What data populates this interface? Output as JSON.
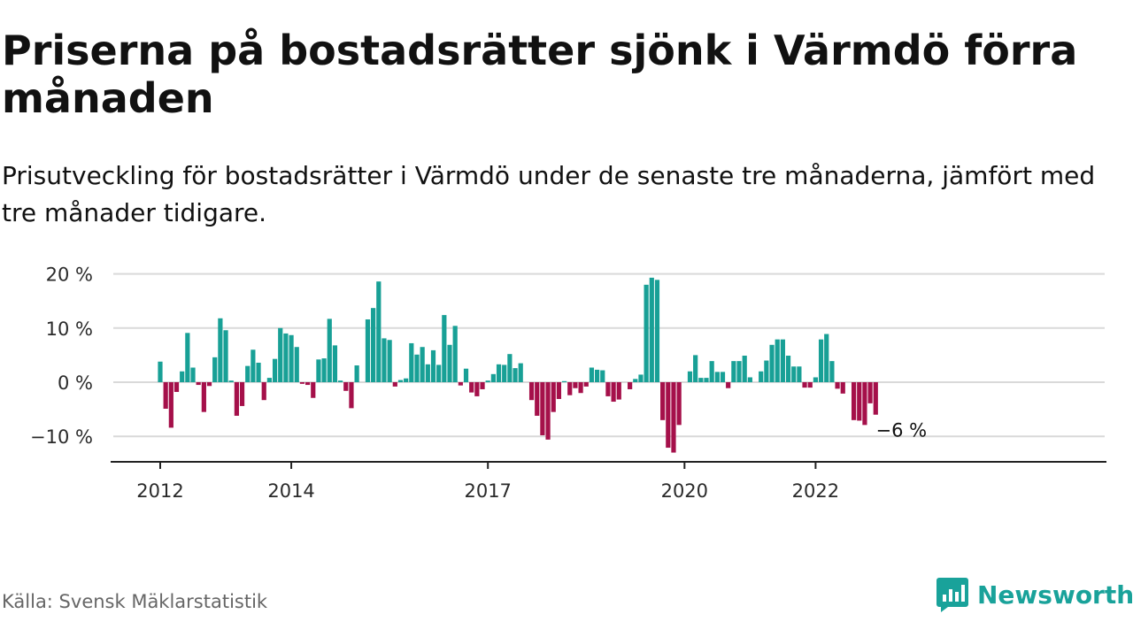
{
  "title": "Priserna på bostadsrätter sjönk i Värmdö förra månaden",
  "subtitle": "Prisutveckling för bostadsrätter i Värmdö under de senaste tre månaderna, jämfört med tre månader tidigare.",
  "source": "Källa: Svensk Mäklarstatistik",
  "logo": {
    "text": "Newsworthy",
    "icon": "newsworthy-logo-icon"
  },
  "colors": {
    "positive": "#18a096",
    "negative": "#a5104a",
    "grid": "#d9d9d9",
    "axis": "#222222",
    "brand": "#19a29a"
  },
  "chart_data": {
    "type": "bar",
    "title": "Priserna på bostadsrätter sjönk i Värmdö förra månaden",
    "xlabel": "",
    "ylabel": "",
    "ylim": [
      -14.5,
      21.5
    ],
    "grid": true,
    "legend": "none",
    "start_month": "2012-01",
    "y_ticks": [
      {
        "value": 20,
        "label": "20 %"
      },
      {
        "value": 10,
        "label": "10 %"
      },
      {
        "value": 0,
        "label": "0 %"
      },
      {
        "value": -10,
        "label": "−10 %"
      }
    ],
    "x_ticks": [
      {
        "month": "2012-01",
        "label": "2012"
      },
      {
        "month": "2014-01",
        "label": "2014"
      },
      {
        "month": "2017-01",
        "label": "2017"
      },
      {
        "month": "2020-01",
        "label": "2020"
      },
      {
        "month": "2022-01",
        "label": "2022"
      }
    ],
    "end_label": "−6 %",
    "values": [
      3.8,
      -4.9,
      -8.4,
      -1.8,
      2.0,
      9.1,
      2.7,
      -0.5,
      -5.5,
      -0.7,
      4.6,
      11.8,
      9.6,
      0.3,
      -6.2,
      -4.4,
      3.0,
      6.0,
      3.6,
      -3.3,
      0.8,
      4.3,
      10.0,
      9.0,
      8.7,
      6.5,
      -0.3,
      -0.5,
      -2.9,
      4.2,
      4.4,
      11.7,
      6.8,
      0.3,
      -1.6,
      -4.8,
      3.1,
      0.0,
      11.6,
      13.7,
      18.6,
      8.1,
      7.8,
      -0.8,
      0.4,
      0.7,
      7.2,
      5.1,
      6.5,
      3.3,
      5.9,
      3.2,
      12.4,
      6.9,
      10.4,
      -0.6,
      2.5,
      -1.9,
      -2.6,
      -1.3,
      0.3,
      1.5,
      3.3,
      3.2,
      5.2,
      2.6,
      3.5,
      0.0,
      -3.3,
      -6.2,
      -9.8,
      -10.6,
      -5.5,
      -3.1,
      0.2,
      -2.4,
      -1.1,
      -2.0,
      -0.8,
      2.7,
      2.3,
      2.2,
      -2.6,
      -3.6,
      -3.2,
      0.0,
      -1.3,
      0.6,
      1.4,
      18.0,
      19.3,
      18.9,
      -7.0,
      -12.1,
      -13.0,
      -7.9,
      0.0,
      2.0,
      5.0,
      0.8,
      0.8,
      3.9,
      1.9,
      1.9,
      -1.1,
      3.9,
      3.9,
      4.9,
      0.9,
      0.0,
      2.0,
      4.0,
      6.9,
      7.9,
      7.9,
      4.9,
      2.9,
      2.9,
      -1.0,
      -1.0,
      0.9,
      7.9,
      8.9,
      3.9,
      -1.2,
      -2.1,
      0.0,
      -7.0,
      -7.1,
      -7.9,
      -3.9,
      -6.0
    ]
  }
}
